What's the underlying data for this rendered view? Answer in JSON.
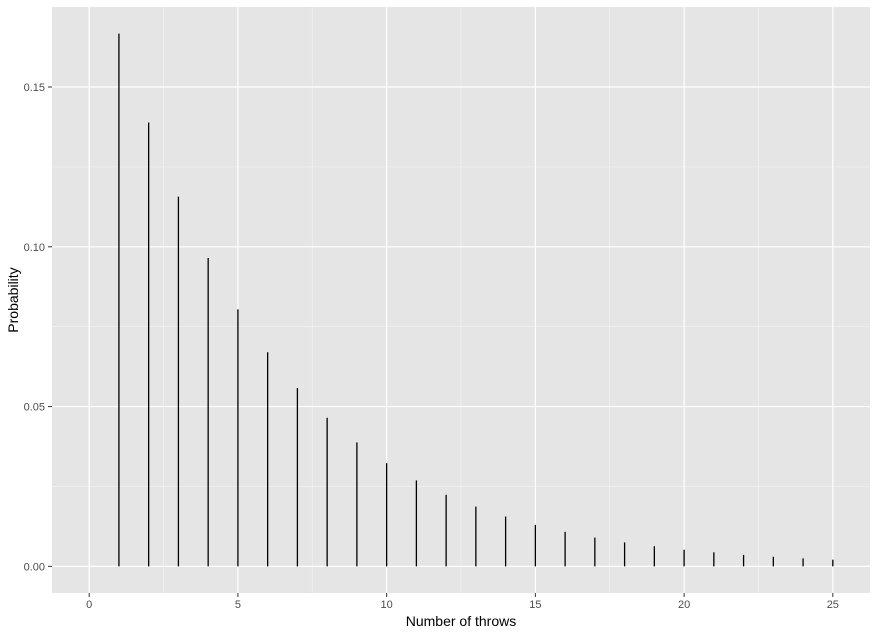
{
  "chart_data": {
    "type": "bar",
    "style": "spike",
    "title": "",
    "xlabel": "Number of throws",
    "ylabel": "Probability",
    "xlim": [
      0,
      25
    ],
    "ylim": [
      0,
      0.1667
    ],
    "x_ticks": [
      0,
      5,
      10,
      15,
      20,
      25
    ],
    "x_tick_labels": [
      "0",
      "5",
      "10",
      "15",
      "20",
      "25"
    ],
    "y_ticks": [
      0,
      0.05,
      0.1,
      0.15
    ],
    "y_tick_labels": [
      "0.00",
      "0.05",
      "0.10",
      "0.15"
    ],
    "grid": true,
    "colors": {
      "panel_background": "#e5e5e5",
      "grid_major": "#ffffff",
      "spike": "#000000"
    },
    "series": [
      {
        "x": [
          1,
          2,
          3,
          4,
          5,
          6,
          7,
          8,
          9,
          10,
          11,
          12,
          13,
          14,
          15,
          16,
          17,
          18,
          19,
          20,
          21,
          22,
          23,
          24,
          25
        ],
        "values": [
          0.1667,
          0.1389,
          0.1157,
          0.0965,
          0.0804,
          0.067,
          0.0558,
          0.0465,
          0.0388,
          0.0323,
          0.0269,
          0.0224,
          0.0187,
          0.0156,
          0.013,
          0.0108,
          0.009,
          0.0075,
          0.0063,
          0.0052,
          0.0044,
          0.0036,
          0.003,
          0.0025,
          0.0021
        ]
      }
    ]
  }
}
